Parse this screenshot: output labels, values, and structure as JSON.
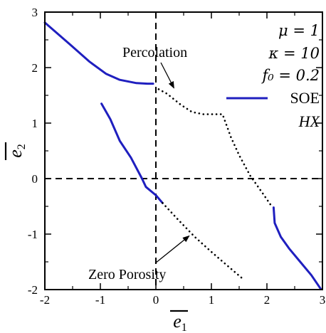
{
  "chart_data": {
    "type": "line",
    "title": "",
    "xlabel": "e1",
    "ylabel": "e2",
    "xlim": [
      -2,
      3
    ],
    "ylim": [
      -2,
      3
    ],
    "xticks": [
      "-2",
      "-1",
      "0",
      "1",
      "2",
      "3"
    ],
    "yticks": [
      "-2",
      "-1",
      "0",
      "1",
      "2",
      "3"
    ],
    "x_tick_values": [
      -2,
      -1,
      0,
      1,
      2,
      3
    ],
    "y_tick_values": [
      -2,
      -1,
      0,
      1,
      2,
      3
    ],
    "grid": false,
    "reference_lines": {
      "x": 0,
      "y": 0,
      "style": "dashed"
    },
    "parameters": [
      "μ = 1",
      "κ = 10",
      "f₀ = 0.2"
    ],
    "legend": {
      "placement": "top-right",
      "entries": [
        "SOE",
        "HX"
      ]
    },
    "series": [
      {
        "name": "SOE",
        "style": "solid",
        "color": "#1f1fbf",
        "segments": [
          [
            [
              -2.0,
              2.81
            ],
            [
              -1.55,
              2.42
            ],
            [
              -1.2,
              2.11
            ],
            [
              -0.9,
              1.89
            ],
            [
              -0.65,
              1.78
            ],
            [
              -0.35,
              1.72
            ],
            [
              -0.15,
              1.71
            ],
            [
              -0.05,
              1.71
            ]
          ],
          [
            [
              -0.98,
              1.35
            ],
            [
              -0.82,
              1.07
            ],
            [
              -0.65,
              0.68
            ],
            [
              -0.45,
              0.38
            ],
            [
              -0.25,
              0.0
            ],
            [
              -0.18,
              -0.15
            ],
            [
              0.0,
              -0.3
            ],
            [
              0.12,
              -0.44
            ]
          ],
          [
            [
              2.12,
              -0.52
            ],
            [
              2.14,
              -0.8
            ],
            [
              2.25,
              -1.05
            ],
            [
              2.4,
              -1.26
            ],
            [
              2.6,
              -1.5
            ],
            [
              2.8,
              -1.74
            ],
            [
              2.97,
              -1.99
            ]
          ]
        ]
      },
      {
        "name": "HX",
        "style": "dotted",
        "color": "#000000",
        "segments": [
          [
            [
              0.05,
              1.61
            ],
            [
              0.2,
              1.53
            ],
            [
              0.45,
              1.33
            ],
            [
              0.65,
              1.2
            ],
            [
              0.85,
              1.16
            ],
            [
              1.2,
              1.16
            ],
            [
              1.35,
              0.75
            ],
            [
              1.5,
              0.42
            ],
            [
              1.7,
              0.05
            ],
            [
              1.92,
              -0.26
            ],
            [
              2.1,
              -0.52
            ]
          ],
          [
            [
              0.12,
              -0.44
            ],
            [
              0.4,
              -0.74
            ],
            [
              0.7,
              -1.05
            ],
            [
              1.0,
              -1.32
            ],
            [
              1.3,
              -1.58
            ],
            [
              1.57,
              -1.81
            ]
          ]
        ]
      }
    ],
    "annotations": [
      {
        "text": "Percolation",
        "points_to": [
          0.3,
          1.58
        ]
      },
      {
        "text": "Zero Porosity",
        "points_to": [
          0.6,
          -0.93
        ]
      }
    ]
  }
}
